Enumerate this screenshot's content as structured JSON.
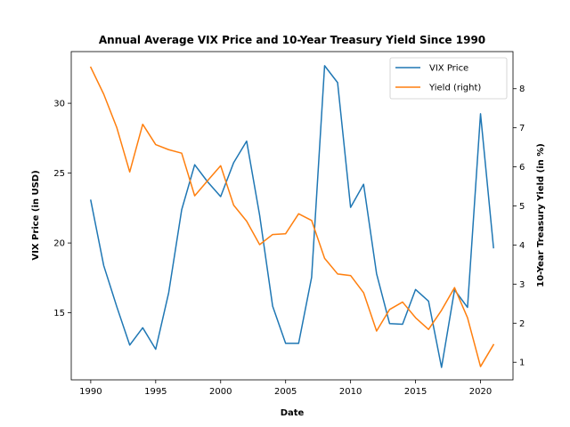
{
  "chart_data": {
    "type": "line",
    "title": "Annual Average VIX Price and 10-Year Treasury Yield Since 1990",
    "xlabel": "Date",
    "ylabel": "VIX Price (in USD)",
    "ylabel_right": "10-Year Treasury Yield (in %)",
    "xlim": [
      1988.5,
      2022.5
    ],
    "ylim": [
      10.2,
      33.7
    ],
    "ylim_right": [
      0.55,
      8.95
    ],
    "x_ticks": [
      1990,
      1995,
      2000,
      2005,
      2010,
      2015,
      2020
    ],
    "y_ticks": [
      15,
      20,
      25,
      30
    ],
    "y_ticks_right": [
      1,
      2,
      3,
      4,
      5,
      6,
      7,
      8
    ],
    "grid": false,
    "legend_position": "top-right",
    "x": [
      1990,
      1991,
      1992,
      1993,
      1994,
      1995,
      1996,
      1997,
      1998,
      1999,
      2000,
      2001,
      2002,
      2003,
      2004,
      2005,
      2006,
      2007,
      2008,
      2009,
      2010,
      2011,
      2012,
      2013,
      2014,
      2015,
      2016,
      2017,
      2018,
      2019,
      2020,
      2021
    ],
    "series": [
      {
        "name": "VIX Price",
        "axis": "left",
        "color": "#1f77b4",
        "values": [
          23.06,
          18.38,
          15.45,
          12.69,
          13.93,
          12.39,
          16.44,
          22.38,
          25.6,
          24.37,
          23.32,
          25.75,
          27.29,
          21.98,
          15.48,
          12.81,
          12.81,
          17.54,
          32.69,
          31.48,
          22.55,
          24.2,
          17.8,
          14.23,
          14.18,
          16.67,
          15.83,
          11.09,
          16.64,
          15.39,
          29.25,
          19.66
        ]
      },
      {
        "name": "Yield (right)",
        "axis": "right",
        "color": "#ff7f0e",
        "values": [
          8.55,
          7.86,
          7.01,
          5.87,
          7.09,
          6.57,
          6.44,
          6.35,
          5.26,
          5.65,
          6.03,
          5.02,
          4.61,
          4.01,
          4.27,
          4.29,
          4.8,
          4.63,
          3.66,
          3.26,
          3.22,
          2.78,
          1.8,
          2.35,
          2.54,
          2.14,
          1.84,
          2.33,
          2.91,
          2.14,
          0.89,
          1.45
        ]
      }
    ]
  }
}
